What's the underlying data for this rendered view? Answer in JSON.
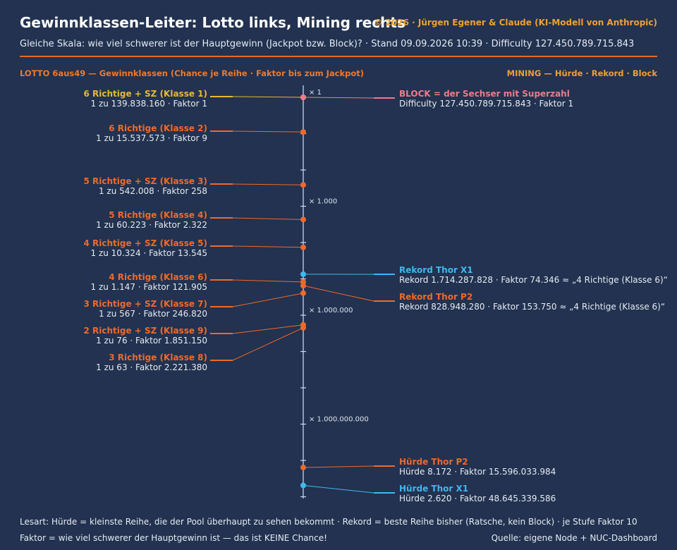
{
  "header": {
    "title": "Gewinnklassen-Leiter: Lotto links, Mining rechts",
    "copyright": "© 2026 · Jürgen Egener & Claude (KI-Modell von Anthropic)",
    "subtitle": "Gleiche Skala: wie viel schwerer ist der Hauptgewinn (Jackpot bzw. Block)? · Stand 09.09.2026 10:39 · Difficulty 127.450.789.715.843"
  },
  "lotto": {
    "heading": "LOTTO 6aus49 — Gewinnklassen (Chance je Reihe · Faktor bis zum Jackpot)",
    "items": [
      {
        "title": "6 Richtige + SZ (Klasse 1)",
        "detail": "1 zu 139.838.160 · Faktor 1",
        "factor": 1,
        "color": "#e8b830"
      },
      {
        "title": "6 Richtige (Klasse 2)",
        "detail": "1 zu 15.537.573 · Faktor 9",
        "factor": 9,
        "color": "#f0692a"
      },
      {
        "title": "5 Richtige + SZ (Klasse 3)",
        "detail": "1 zu 542.008 · Faktor 258",
        "factor": 258,
        "color": "#f0692a"
      },
      {
        "title": "5 Richtige (Klasse 4)",
        "detail": "1 zu 60.223 · Faktor 2.322",
        "factor": 2322,
        "color": "#f0692a"
      },
      {
        "title": "4 Richtige + SZ (Klasse 5)",
        "detail": "1 zu 10.324 · Faktor 13.545",
        "factor": 13545,
        "color": "#f0692a"
      },
      {
        "title": "4 Richtige (Klasse 6)",
        "detail": "1 zu 1.147 · Faktor 121.905",
        "factor": 121905,
        "color": "#f0692a"
      },
      {
        "title": "3 Richtige + SZ (Klasse 7)",
        "detail": "1 zu 567 · Faktor 246.820",
        "factor": 246820,
        "color": "#f0692a"
      },
      {
        "title": "2 Richtige + SZ (Klasse 9)",
        "detail": "1 zu 76 · Faktor 1.851.150",
        "factor": 1851150,
        "color": "#f0692a"
      },
      {
        "title": "3 Richtige (Klasse 8)",
        "detail": "1 zu 63 · Faktor 2.221.380",
        "factor": 2221380,
        "color": "#f0692a"
      }
    ]
  },
  "mining": {
    "heading": "MINING — Hürde · Rekord · Block",
    "items": [
      {
        "title": "BLOCK = der Sechser mit Superzahl",
        "detail": "Difficulty 127.450.789.715.843 · Faktor 1",
        "factor": 1,
        "color": "#f07a8a"
      },
      {
        "title": "Rekord Thor X1",
        "detail": "Rekord 1.714.287.828 · Faktor 74.346 ≈ „4 Richtige (Klasse 6)“",
        "factor": 74346,
        "color": "#3fb8f0"
      },
      {
        "title": "Rekord Thor P2",
        "detail": "Rekord 828.948.280 · Faktor 153.750 ≈ „4 Richtige (Klasse 6)“",
        "factor": 153750,
        "color": "#f0692a"
      },
      {
        "title": "Hürde Thor P2",
        "detail": "Hürde 8.172 · Faktor 15.596.033.984",
        "factor": 15596033984,
        "color": "#f0692a"
      },
      {
        "title": "Hürde Thor X1",
        "detail": "Hürde 2.620 · Faktor 48.645.339.586",
        "factor": 48645339586,
        "color": "#3fb8f0"
      }
    ]
  },
  "scale": {
    "labels": [
      {
        "text": "× 1",
        "factor": 1
      },
      {
        "text": "× 1.000",
        "factor": 1000
      },
      {
        "text": "× 1.000.000",
        "factor": 1000000
      },
      {
        "text": "× 1.000.000.000",
        "factor": 1000000000
      }
    ],
    "log_min": 0,
    "log_max": 11.5,
    "tick_step": 1
  },
  "footer": {
    "legend": "Lesart: Hürde = kleinste Reihe, die der Pool überhaupt zu sehen bekommt · Rekord = beste Reihe bisher (Ratsche, kein Block) · je Stufe Faktor 10",
    "note": "Faktor = wie viel schwerer der Hauptgewinn ist — das ist KEINE Chance!",
    "source": "Quelle: eigene Node + NUC-Dashboard"
  },
  "colors": {
    "background": "#223250",
    "axis": "#8a9bbd",
    "accent_orange": "#f0692a",
    "accent_gold": "#e8b830",
    "accent_pink": "#f07a8a",
    "accent_blue": "#3fb8f0",
    "rule": "#e8682a"
  }
}
